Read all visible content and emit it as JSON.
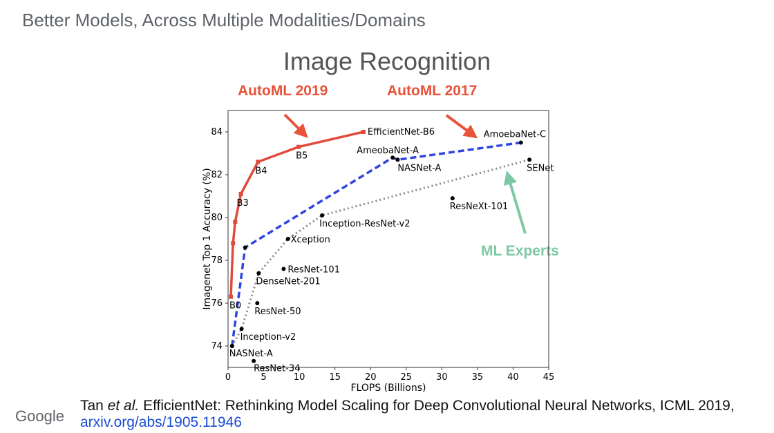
{
  "header": {
    "title": "Better Models, Across Multiple Modalities/Domains"
  },
  "annotations": {
    "automl_2019": "AutoML 2019",
    "automl_2017": "AutoML 2017",
    "ml_experts": "ML Experts"
  },
  "footer": {
    "logo": "Google",
    "citation_prefix": "Tan ",
    "citation_etal": "et al.",
    "citation_text": " EfficientNet: Rethinking Model Scaling for Deep Convolutional Neural Networks, ICML 2019,",
    "link": "arxiv.org/abs/1905.11946"
  },
  "colors": {
    "efficientnet": "#e04b3c",
    "automl2017": "#2f45e0",
    "experts": "#888888",
    "points": "#000000",
    "annot_red": "#e8533a",
    "annot_green": "#7ec8a4"
  },
  "chart_data": {
    "type": "line",
    "title": "Image Recognition",
    "xlabel": "FLOPS (Billions)",
    "ylabel": "Imagenet Top 1 Accuracy (%)",
    "xlim": [
      0,
      45
    ],
    "ylim": [
      73,
      85
    ],
    "xticks": [
      0,
      5,
      10,
      15,
      20,
      25,
      30,
      35,
      40,
      45
    ],
    "yticks": [
      74,
      76,
      78,
      80,
      82,
      84
    ],
    "grid": false,
    "series": [
      {
        "style": "solid",
        "points": [
          {
            "x": 0.39,
            "y": 76.3,
            "label": "B0"
          },
          {
            "x": 0.7,
            "y": 78.8,
            "label": ""
          },
          {
            "x": 1.0,
            "y": 79.8,
            "label": ""
          },
          {
            "x": 1.8,
            "y": 81.1,
            "label": "B3"
          },
          {
            "x": 4.2,
            "y": 82.6,
            "label": "B4"
          },
          {
            "x": 9.9,
            "y": 83.3,
            "label": "B5"
          },
          {
            "x": 19.0,
            "y": 84.0,
            "label": "EfficientNet-B6"
          }
        ]
      },
      {
        "style": "dashed",
        "points": [
          {
            "x": 0.56,
            "y": 74.0,
            "label": ""
          },
          {
            "x": 2.4,
            "y": 78.6,
            "label": ""
          },
          {
            "x": 23.1,
            "y": 82.8,
            "label": "AmeobaNet-A"
          },
          {
            "x": 23.8,
            "y": 82.7,
            "label": "NASNet-A"
          },
          {
            "x": 41.1,
            "y": 83.5,
            "label": "AmoebaNet-C"
          }
        ]
      },
      {
        "style": "dotted",
        "points": [
          {
            "x": 0.56,
            "y": 74.0,
            "label": "NASNet-A"
          },
          {
            "x": 1.9,
            "y": 74.8,
            "label": "Inception-v2"
          },
          {
            "x": 4.3,
            "y": 77.4,
            "label": "DenseNet-201"
          },
          {
            "x": 8.4,
            "y": 79.0,
            "label": "Xception"
          },
          {
            "x": 13.2,
            "y": 80.1,
            "label": "Inception-ResNet-v2"
          },
          {
            "x": 42.3,
            "y": 82.7,
            "label": "SENet"
          }
        ]
      }
    ],
    "points": [
      {
        "x": 3.6,
        "y": 73.3,
        "label": "ResNet-34"
      },
      {
        "x": 4.1,
        "y": 76.0,
        "label": "ResNet-50"
      },
      {
        "x": 7.8,
        "y": 77.6,
        "label": "ResNet-101"
      },
      {
        "x": 31.5,
        "y": 80.9,
        "label": "ResNeXt-101"
      }
    ]
  }
}
